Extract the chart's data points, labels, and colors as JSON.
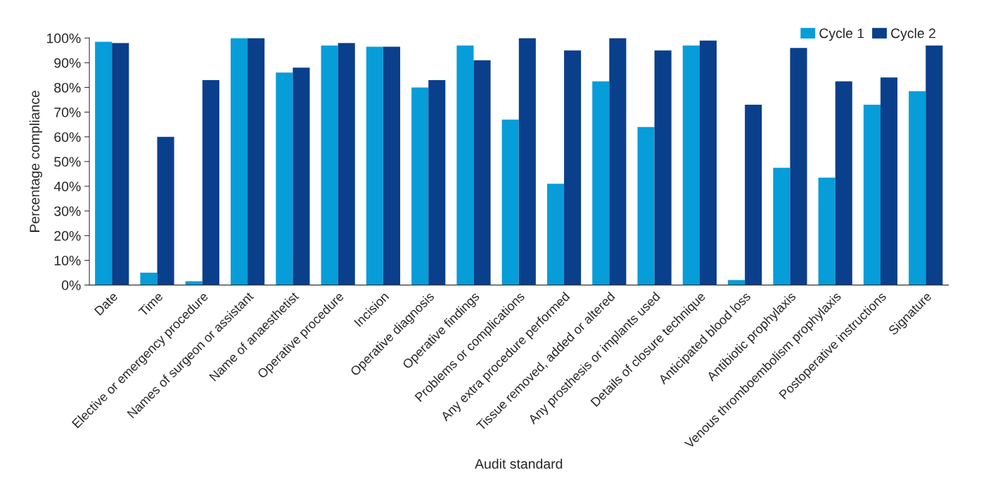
{
  "chart_data": {
    "type": "bar",
    "xlabel": "Audit standard",
    "ylabel": "Percentage compliance",
    "categories": [
      "Date",
      "Time",
      "Elective or emergency procedure",
      "Names of surgeon or assistant",
      "Name of anaesthetist",
      "Operative procedure",
      "Incision",
      "Operative diagnosis",
      "Operative findings",
      "Problems or complications",
      "Any extra procedure performed",
      "Tissue removed, added or altered",
      "Any prosthesis or implants used",
      "Details of closure technique",
      "Anticipated blood loss",
      "Antibiotic prophylaxis",
      "Venous thromboembolism prophylaxis",
      "Postoperative instructions",
      "Signature"
    ],
    "series": [
      {
        "name": "Cycle 1",
        "color": "#069dd9",
        "values": [
          98.5,
          5,
          1.5,
          100,
          86,
          97,
          96.5,
          80,
          97,
          67,
          41,
          82.5,
          64,
          97,
          2,
          47.5,
          43.5,
          73,
          78.5
        ]
      },
      {
        "name": "Cycle 2",
        "color": "#0a3f8c",
        "values": [
          98,
          60,
          83,
          100,
          88,
          98,
          96.5,
          83,
          91,
          100,
          95,
          100,
          95,
          99,
          73,
          96,
          82.5,
          84,
          97
        ]
      }
    ],
    "ylim": [
      0,
      100
    ],
    "yticks": [
      {
        "value": 0,
        "label": "0%"
      },
      {
        "value": 10,
        "label": "10%"
      },
      {
        "value": 20,
        "label": "20%"
      },
      {
        "value": 30,
        "label": "30%"
      },
      {
        "value": 40,
        "label": "40%"
      },
      {
        "value": 50,
        "label": "50%"
      },
      {
        "value": 60,
        "label": "60%"
      },
      {
        "value": 70,
        "label": "70%"
      },
      {
        "value": 80,
        "label": "80%"
      },
      {
        "value": 90,
        "label": "90%"
      },
      {
        "value": 100,
        "label": "100%"
      }
    ],
    "grid": false,
    "legend": "top right"
  }
}
